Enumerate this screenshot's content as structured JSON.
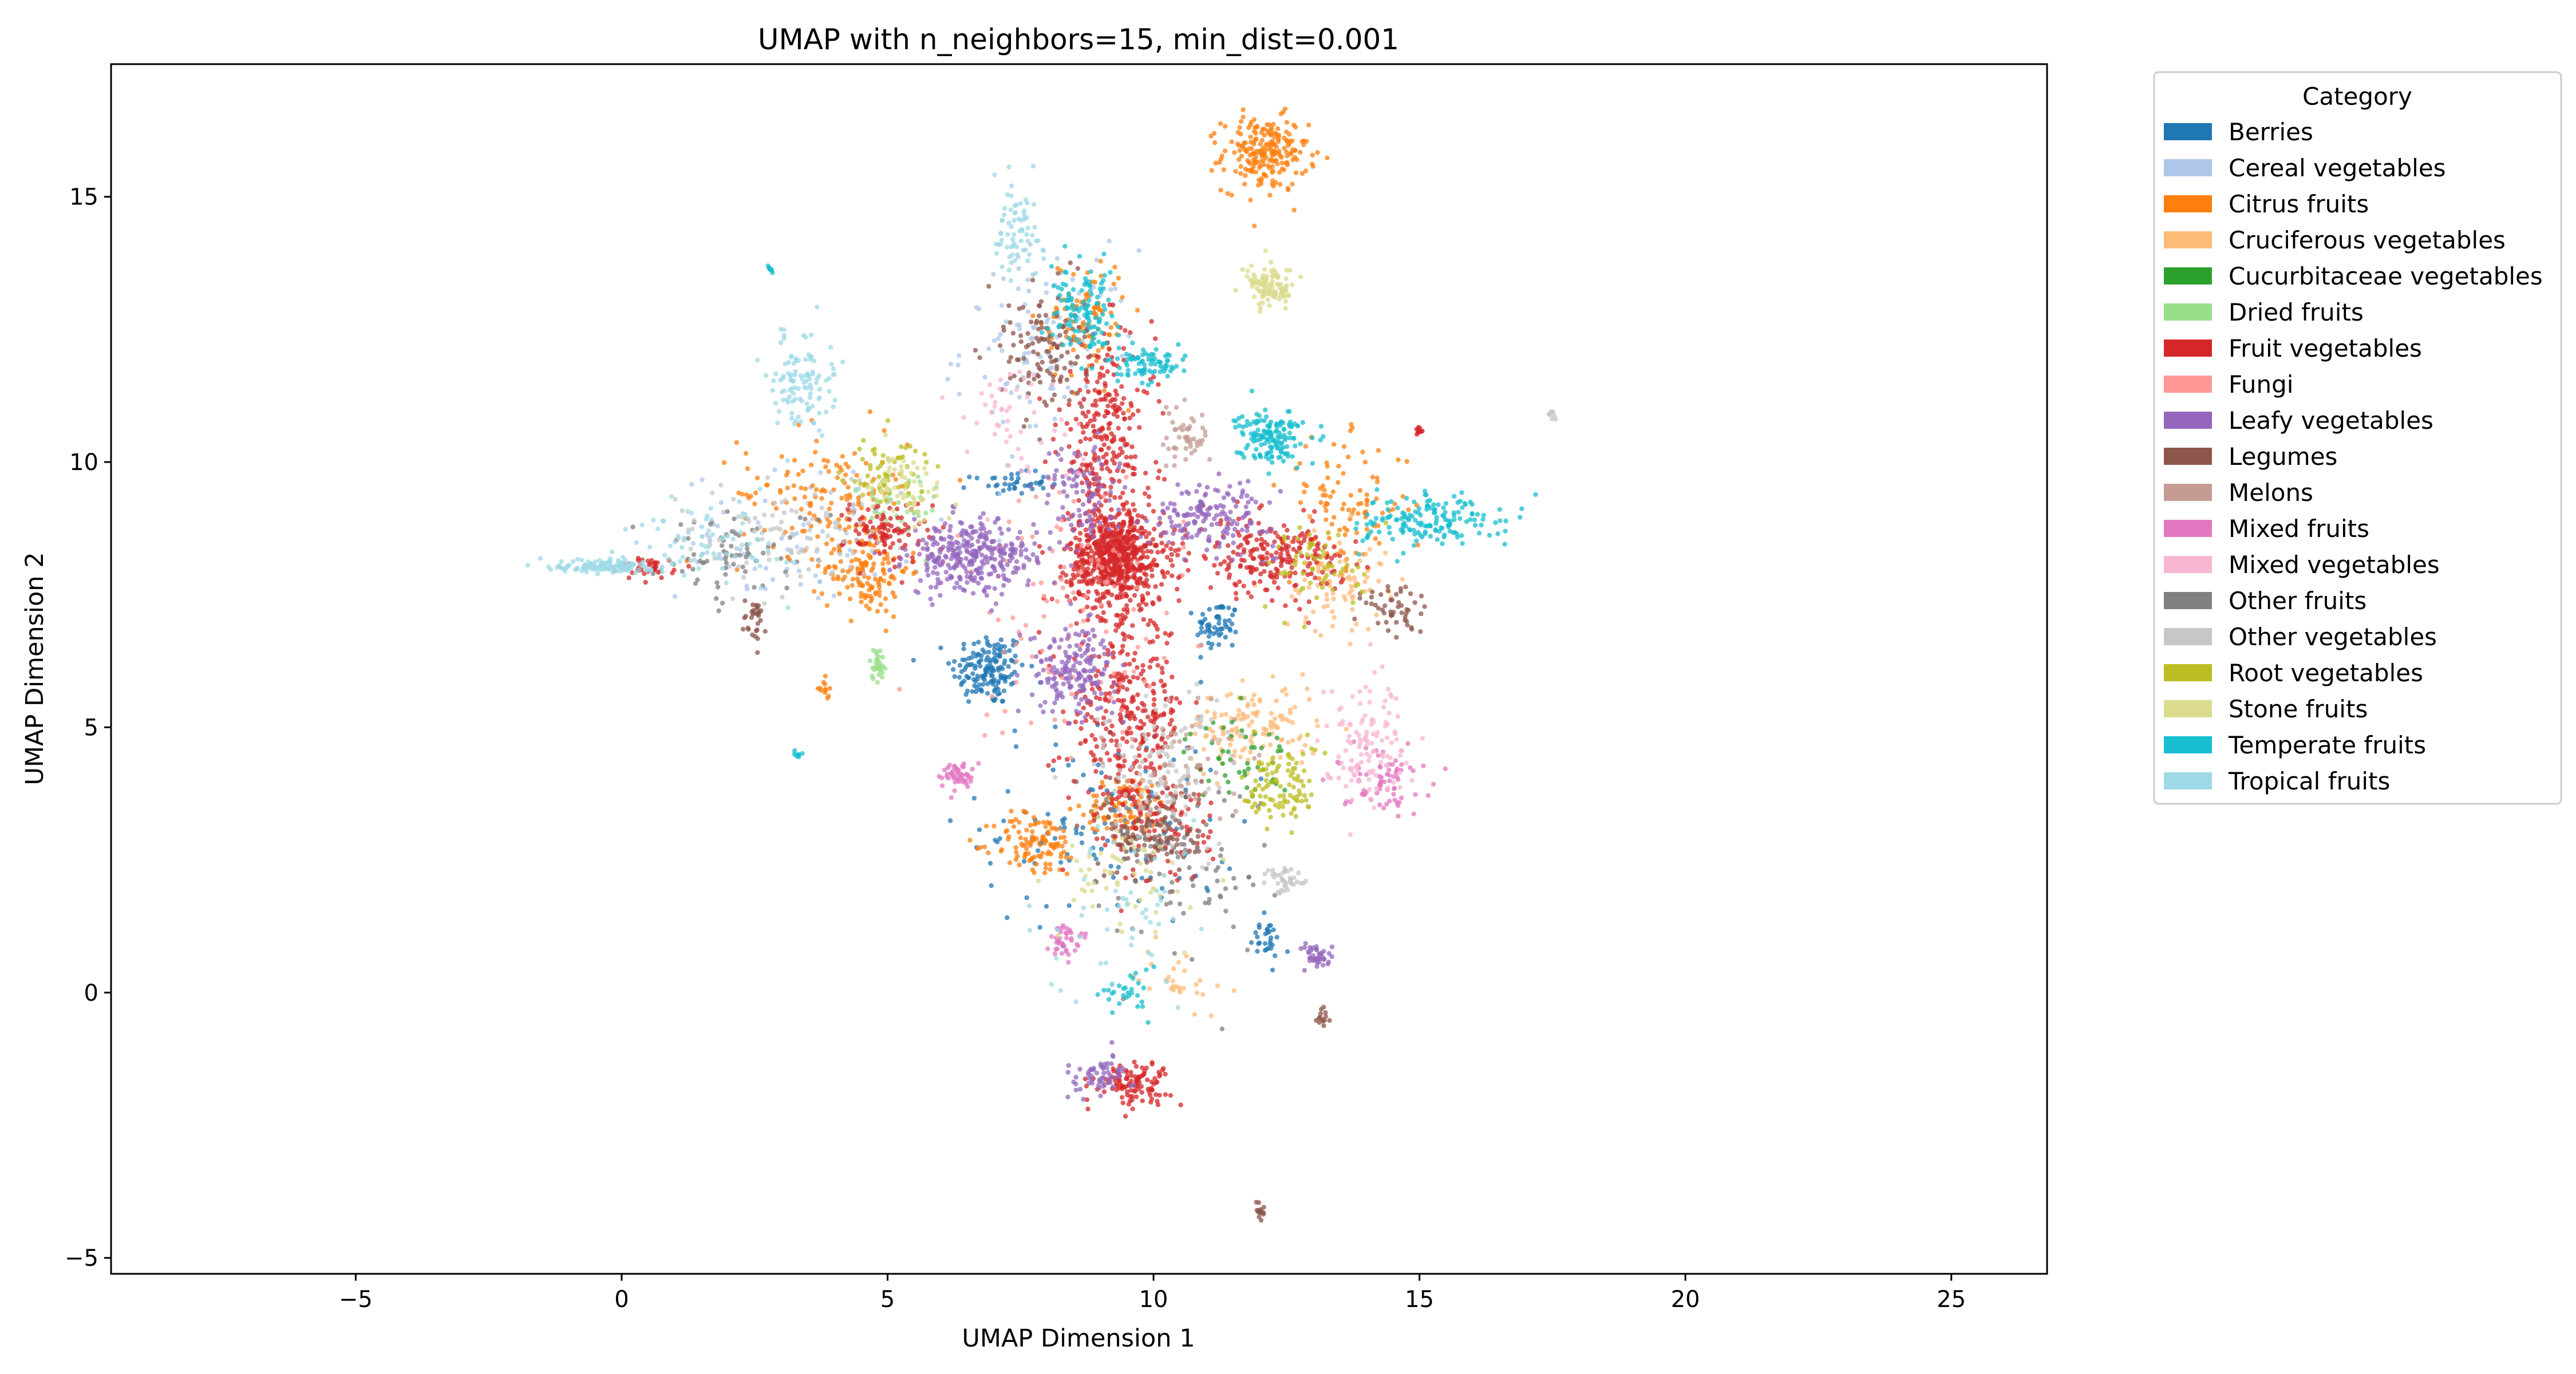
{
  "chart_data": {
    "type": "scatter",
    "title": "UMAP with n_neighbors=15, min_dist=0.001",
    "xlabel": "UMAP Dimension 1",
    "ylabel": "UMAP Dimension 2",
    "xlim": [
      -9.6,
      26.8
    ],
    "ylim": [
      -5.3,
      17.5
    ],
    "xticks": [
      -5,
      0,
      5,
      10,
      15,
      20,
      25
    ],
    "yticks": [
      -5,
      0,
      5,
      10,
      15
    ],
    "xtick_labels": [
      "−5",
      "0",
      "5",
      "10",
      "15",
      "20",
      "25"
    ],
    "ytick_labels": [
      "−5",
      "0",
      "5",
      "10",
      "15"
    ],
    "grid": false,
    "legend": {
      "title": "Category",
      "placement": "outside-right-top"
    },
    "series": [
      {
        "name": "Berries",
        "color": "#1f77b4",
        "clusters": [
          {
            "x": 6.9,
            "y": 6.1,
            "sx": 0.35,
            "sy": 0.35,
            "n": 160
          },
          {
            "x": 11.2,
            "y": 6.9,
            "sx": 0.2,
            "sy": 0.25,
            "n": 60
          },
          {
            "x": 7.3,
            "y": 9.6,
            "sx": 0.35,
            "sy": 0.1,
            "n": 40
          },
          {
            "x": 9.2,
            "y": 3.2,
            "sx": 1.2,
            "sy": 1.0,
            "n": 120
          },
          {
            "x": 12.1,
            "y": 1.0,
            "sx": 0.15,
            "sy": 0.2,
            "n": 30
          }
        ]
      },
      {
        "name": "Cereal vegetables",
        "color": "#aec7e8",
        "clusters": [
          {
            "x": 8.0,
            "y": 12.2,
            "sx": 0.8,
            "sy": 0.9,
            "n": 110
          },
          {
            "x": 3.5,
            "y": 8.6,
            "sx": 1.2,
            "sy": 0.6,
            "n": 90
          }
        ]
      },
      {
        "name": "Citrus fruits",
        "color": "#ff7f0e",
        "clusters": [
          {
            "x": 12.1,
            "y": 15.8,
            "sx": 0.4,
            "sy": 0.35,
            "n": 220
          },
          {
            "x": 4.6,
            "y": 8.0,
            "sx": 0.4,
            "sy": 0.45,
            "n": 140
          },
          {
            "x": 7.8,
            "y": 2.8,
            "sx": 0.4,
            "sy": 0.3,
            "n": 110
          },
          {
            "x": 9.5,
            "y": 3.5,
            "sx": 0.4,
            "sy": 0.3,
            "n": 90
          },
          {
            "x": 3.8,
            "y": 9.4,
            "sx": 0.8,
            "sy": 0.6,
            "n": 130
          },
          {
            "x": 13.6,
            "y": 9.2,
            "sx": 0.6,
            "sy": 0.6,
            "n": 100
          },
          {
            "x": 8.7,
            "y": 12.7,
            "sx": 0.4,
            "sy": 0.6,
            "n": 90
          },
          {
            "x": 3.8,
            "y": 5.7,
            "sx": 0.05,
            "sy": 0.1,
            "n": 12
          }
        ]
      },
      {
        "name": "Cruciferous vegetables",
        "color": "#ffbb78",
        "clusters": [
          {
            "x": 11.9,
            "y": 5.0,
            "sx": 0.6,
            "sy": 0.4,
            "n": 130
          },
          {
            "x": 13.4,
            "y": 7.8,
            "sx": 0.5,
            "sy": 0.5,
            "n": 90
          },
          {
            "x": 10.5,
            "y": 0.3,
            "sx": 0.4,
            "sy": 0.3,
            "n": 30
          }
        ]
      },
      {
        "name": "Cucurbitaceae vegetables",
        "color": "#2ca02c",
        "clusters": [
          {
            "x": 11.6,
            "y": 4.4,
            "sx": 0.5,
            "sy": 0.4,
            "n": 50
          }
        ]
      },
      {
        "name": "Dried fruits",
        "color": "#98df8a",
        "clusters": [
          {
            "x": 4.8,
            "y": 6.2,
            "sx": 0.07,
            "sy": 0.15,
            "n": 30
          },
          {
            "x": 5.2,
            "y": 9.2,
            "sx": 0.4,
            "sy": 0.4,
            "n": 40
          }
        ]
      },
      {
        "name": "Fruit vegetables",
        "color": "#d62728",
        "clusters": [
          {
            "x": 9.3,
            "y": 8.2,
            "sx": 0.45,
            "sy": 0.45,
            "n": 650
          },
          {
            "x": 9.1,
            "y": 10.4,
            "sx": 0.45,
            "sy": 1.0,
            "n": 280
          },
          {
            "x": 9.5,
            "y": 5.3,
            "sx": 0.55,
            "sy": 0.9,
            "n": 320
          },
          {
            "x": 12.2,
            "y": 8.2,
            "sx": 0.7,
            "sy": 0.35,
            "n": 220
          },
          {
            "x": 9.6,
            "y": -1.7,
            "sx": 0.35,
            "sy": 0.2,
            "n": 110
          },
          {
            "x": 5.0,
            "y": 8.7,
            "sx": 0.4,
            "sy": 0.3,
            "n": 100
          },
          {
            "x": 10.1,
            "y": 3.2,
            "sx": 0.5,
            "sy": 0.6,
            "n": 120
          },
          {
            "x": 0.5,
            "y": 8.0,
            "sx": 0.25,
            "sy": 0.1,
            "n": 40
          },
          {
            "x": 15.0,
            "y": 10.6,
            "sx": 0.03,
            "sy": 0.05,
            "n": 10
          }
        ]
      },
      {
        "name": "Fungi",
        "color": "#ff9896",
        "clusters": [
          {
            "x": 8.4,
            "y": 7.2,
            "sx": 1.2,
            "sy": 1.2,
            "n": 110
          }
        ]
      },
      {
        "name": "Leafy vegetables",
        "color": "#9467bd",
        "clusters": [
          {
            "x": 6.6,
            "y": 8.2,
            "sx": 0.6,
            "sy": 0.35,
            "n": 320
          },
          {
            "x": 8.5,
            "y": 6.1,
            "sx": 0.4,
            "sy": 0.4,
            "n": 170
          },
          {
            "x": 11.1,
            "y": 9.0,
            "sx": 0.6,
            "sy": 0.3,
            "n": 160
          },
          {
            "x": 8.6,
            "y": 9.4,
            "sx": 0.35,
            "sy": 0.5,
            "n": 90
          },
          {
            "x": 9.0,
            "y": -1.6,
            "sx": 0.3,
            "sy": 0.2,
            "n": 60
          },
          {
            "x": 13.1,
            "y": 0.7,
            "sx": 0.15,
            "sy": 0.12,
            "n": 40
          }
        ]
      },
      {
        "name": "Legumes",
        "color": "#8c564b",
        "clusters": [
          {
            "x": 7.9,
            "y": 12.1,
            "sx": 0.4,
            "sy": 0.6,
            "n": 120
          },
          {
            "x": 10.0,
            "y": 3.0,
            "sx": 0.45,
            "sy": 0.45,
            "n": 120
          },
          {
            "x": 14.6,
            "y": 7.2,
            "sx": 0.3,
            "sy": 0.3,
            "n": 50
          },
          {
            "x": 2.5,
            "y": 7.0,
            "sx": 0.1,
            "sy": 0.25,
            "n": 30
          },
          {
            "x": 12.0,
            "y": -4.1,
            "sx": 0.05,
            "sy": 0.1,
            "n": 14
          },
          {
            "x": 13.2,
            "y": -0.5,
            "sx": 0.05,
            "sy": 0.1,
            "n": 14
          }
        ]
      },
      {
        "name": "Melons",
        "color": "#c49c94",
        "clusters": [
          {
            "x": 10.6,
            "y": 10.5,
            "sx": 0.25,
            "sy": 0.3,
            "n": 50
          },
          {
            "x": 10.5,
            "y": 4.3,
            "sx": 0.6,
            "sy": 0.6,
            "n": 60
          }
        ]
      },
      {
        "name": "Mixed fruits",
        "color": "#e377c2",
        "clusters": [
          {
            "x": 6.3,
            "y": 4.1,
            "sx": 0.15,
            "sy": 0.12,
            "n": 50
          },
          {
            "x": 8.3,
            "y": 1.0,
            "sx": 0.15,
            "sy": 0.15,
            "n": 40
          },
          {
            "x": 14.3,
            "y": 4.0,
            "sx": 0.4,
            "sy": 0.3,
            "n": 70
          }
        ]
      },
      {
        "name": "Mixed vegetables",
        "color": "#f7b6d2",
        "clusters": [
          {
            "x": 14.0,
            "y": 4.8,
            "sx": 0.4,
            "sy": 0.6,
            "n": 120
          },
          {
            "x": 7.3,
            "y": 10.8,
            "sx": 0.6,
            "sy": 0.6,
            "n": 50
          }
        ]
      },
      {
        "name": "Other fruits",
        "color": "#7f7f7f",
        "clusters": [
          {
            "x": 10.4,
            "y": 2.4,
            "sx": 0.9,
            "sy": 0.9,
            "n": 90
          },
          {
            "x": 2.2,
            "y": 8.3,
            "sx": 0.8,
            "sy": 0.4,
            "n": 70
          }
        ]
      },
      {
        "name": "Other vegetables",
        "color": "#c7c7c7",
        "clusters": [
          {
            "x": 10.2,
            "y": 4.2,
            "sx": 0.7,
            "sy": 0.8,
            "n": 100
          },
          {
            "x": 12.5,
            "y": 2.1,
            "sx": 0.2,
            "sy": 0.12,
            "n": 40
          },
          {
            "x": 3.0,
            "y": 8.6,
            "sx": 1.0,
            "sy": 0.6,
            "n": 90
          },
          {
            "x": 17.5,
            "y": 10.9,
            "sx": 0.03,
            "sy": 0.05,
            "n": 8
          }
        ]
      },
      {
        "name": "Root vegetables",
        "color": "#bcbd22",
        "clusters": [
          {
            "x": 12.4,
            "y": 3.9,
            "sx": 0.35,
            "sy": 0.4,
            "n": 100
          },
          {
            "x": 13.2,
            "y": 8.0,
            "sx": 0.5,
            "sy": 0.4,
            "n": 60
          },
          {
            "x": 5.0,
            "y": 9.8,
            "sx": 0.45,
            "sy": 0.35,
            "n": 60
          }
        ]
      },
      {
        "name": "Stone fruits",
        "color": "#dbdb8d",
        "clusters": [
          {
            "x": 12.2,
            "y": 13.3,
            "sx": 0.22,
            "sy": 0.18,
            "n": 110
          },
          {
            "x": 9.4,
            "y": 2.2,
            "sx": 0.6,
            "sy": 0.6,
            "n": 60
          },
          {
            "x": 5.3,
            "y": 9.5,
            "sx": 0.4,
            "sy": 0.35,
            "n": 60
          }
        ]
      },
      {
        "name": "Temperate fruits",
        "color": "#17becf",
        "clusters": [
          {
            "x": 12.2,
            "y": 10.5,
            "sx": 0.3,
            "sy": 0.25,
            "n": 150
          },
          {
            "x": 8.7,
            "y": 12.8,
            "sx": 0.3,
            "sy": 0.4,
            "n": 120
          },
          {
            "x": 9.9,
            "y": 11.8,
            "sx": 0.35,
            "sy": 0.15,
            "n": 80
          },
          {
            "x": 15.2,
            "y": 8.9,
            "sx": 0.7,
            "sy": 0.25,
            "n": 160
          },
          {
            "x": 9.5,
            "y": 0.0,
            "sx": 0.25,
            "sy": 0.25,
            "n": 30
          },
          {
            "x": 2.8,
            "y": 13.6,
            "sx": 0.03,
            "sy": 0.05,
            "n": 8
          },
          {
            "x": 3.3,
            "y": 4.5,
            "sx": 0.03,
            "sy": 0.05,
            "n": 8
          }
        ]
      },
      {
        "name": "Tropical fruits",
        "color": "#9edae5",
        "clusters": [
          {
            "x": -0.3,
            "y": 8.05,
            "sx": 0.45,
            "sy": 0.07,
            "n": 120
          },
          {
            "x": 3.4,
            "y": 11.5,
            "sx": 0.3,
            "sy": 0.45,
            "n": 110
          },
          {
            "x": 7.4,
            "y": 14.4,
            "sx": 0.25,
            "sy": 0.45,
            "n": 70
          },
          {
            "x": 1.8,
            "y": 8.5,
            "sx": 0.7,
            "sy": 0.4,
            "n": 70
          },
          {
            "x": 9.5,
            "y": 1.5,
            "sx": 0.8,
            "sy": 0.8,
            "n": 50
          }
        ]
      }
    ]
  }
}
